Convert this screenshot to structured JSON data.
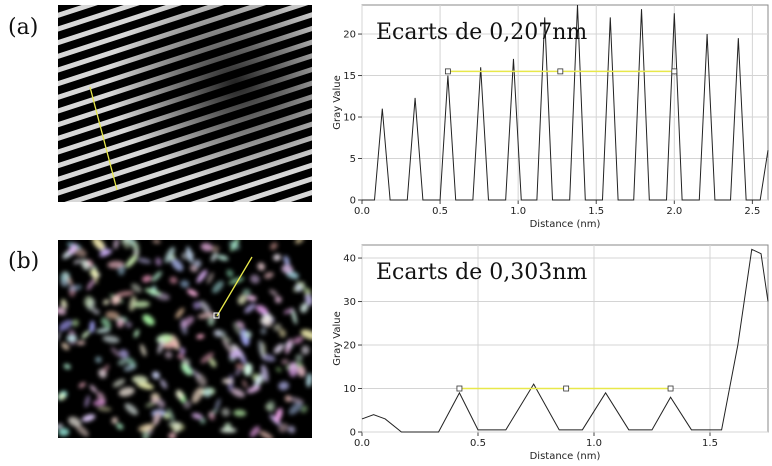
{
  "panel_labels": [
    "(a)",
    "(b)"
  ],
  "chart_data": [
    {
      "type": "line",
      "annotation": "Ecarts de 0,207nm",
      "x_label": "Distance (nm)",
      "y_label": "Gray Value",
      "x": [
        0.0,
        0.08,
        0.13,
        0.18,
        0.29,
        0.34,
        0.39,
        0.5,
        0.55,
        0.6,
        0.71,
        0.76,
        0.81,
        0.92,
        0.97,
        1.02,
        1.12,
        1.17,
        1.22,
        1.33,
        1.38,
        1.43,
        1.54,
        1.59,
        1.64,
        1.74,
        1.79,
        1.84,
        1.95,
        2.0,
        2.05,
        2.16,
        2.21,
        2.26,
        2.36,
        2.41,
        2.46,
        2.55,
        2.6
      ],
      "series": [
        {
          "color": "#222222",
          "values": [
            0,
            0,
            11,
            0,
            0,
            12.3,
            0,
            0,
            15,
            0,
            0,
            16,
            0,
            0,
            17,
            0,
            0,
            22,
            0,
            0,
            23.5,
            0,
            0,
            22,
            0,
            0,
            23,
            0,
            0,
            22.5,
            0,
            0,
            20,
            0,
            0,
            19.5,
            0,
            0,
            6
          ]
        }
      ],
      "xlim": [
        0,
        2.6
      ],
      "ylim": [
        0,
        23.5
      ],
      "xticks": [
        {
          "value": 0,
          "label": "0.0"
        },
        0.5,
        {
          "value": 1,
          "label": "1.0"
        },
        1.5,
        {
          "value": 2,
          "label": "2.0"
        },
        2.5
      ],
      "yticks": [
        0,
        5,
        10,
        15,
        20
      ],
      "grid": true,
      "measure": {
        "color": "#e8e84a",
        "x": [
          0.55,
          1.27,
          2.0
        ],
        "y": 15.5
      }
    },
    {
      "type": "line",
      "annotation": "Ecarts de 0,303nm",
      "x_label": "Distance (nm)",
      "y_label": "Gray Value",
      "x": [
        0.0,
        0.05,
        0.1,
        0.17,
        0.33,
        0.42,
        0.5,
        0.62,
        0.74,
        0.85,
        0.95,
        1.05,
        1.15,
        1.25,
        1.33,
        1.42,
        1.55,
        1.62,
        1.68,
        1.72,
        1.75
      ],
      "series": [
        {
          "color": "#222222",
          "values": [
            3,
            4,
            3,
            0,
            0,
            9,
            0.5,
            0.5,
            11,
            0.5,
            0.5,
            9,
            0.5,
            0.5,
            8,
            0.5,
            0.5,
            20,
            42,
            41,
            30
          ]
        }
      ],
      "xlim": [
        0,
        1.75
      ],
      "ylim": [
        0,
        43
      ],
      "xticks": [
        {
          "value": 0,
          "label": "0.0"
        },
        0.5,
        {
          "value": 1,
          "label": "1.0"
        },
        1.5
      ],
      "yticks": [
        0,
        10,
        20,
        30,
        40
      ],
      "grid": true,
      "measure": {
        "color": "#e8e84a",
        "x": [
          0.42,
          0.88,
          1.33
        ],
        "y": 10
      }
    }
  ]
}
